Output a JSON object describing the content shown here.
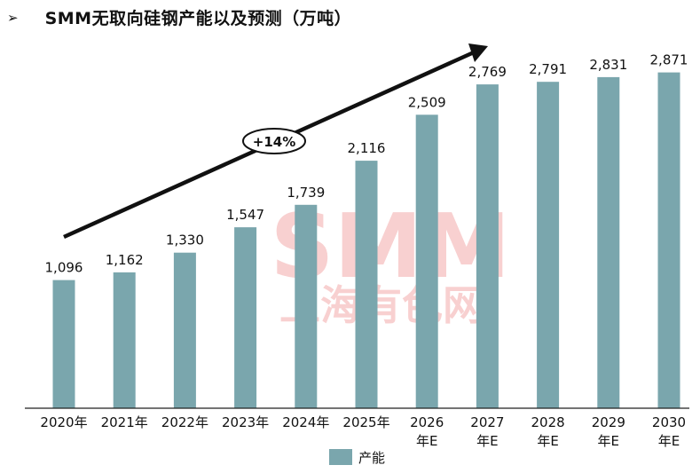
{
  "title_marker": "➢",
  "chart_data": {
    "type": "bar",
    "title": "SMM无取向硅钢产能以及预测（万吨）",
    "categories": [
      "2020年",
      "2021年",
      "2022年",
      "2023年",
      "2024年",
      "2025年",
      "2026年E",
      "2027年E",
      "2028年E",
      "2029年E",
      "2030年E"
    ],
    "category_lines": [
      [
        "2020年"
      ],
      [
        "2021年"
      ],
      [
        "2022年"
      ],
      [
        "2023年"
      ],
      [
        "2024年"
      ],
      [
        "2025年"
      ],
      [
        "2026",
        "年E"
      ],
      [
        "2027",
        "年E"
      ],
      [
        "2028",
        "年E"
      ],
      [
        "2029",
        "年E"
      ],
      [
        "2030",
        "年E"
      ]
    ],
    "series": [
      {
        "name": "产能",
        "color": "#7aa6ad",
        "values": [
          1096,
          1162,
          1330,
          1547,
          1739,
          2116,
          2509,
          2769,
          2791,
          2831,
          2871
        ],
        "labels": [
          "1,096",
          "1,162",
          "1,330",
          "1,547",
          "1,739",
          "2,116",
          "2,509",
          "2,769",
          "2,791",
          "2,831",
          "2,871"
        ]
      }
    ],
    "ylim": [
      0,
      3020
    ],
    "grid": false,
    "legend_position": "bottom",
    "annotation": {
      "text": "+14%",
      "type": "trend-arrow"
    }
  },
  "watermark": {
    "text": "SMM",
    "subtext": "上海有色网",
    "color": "#e03030"
  }
}
